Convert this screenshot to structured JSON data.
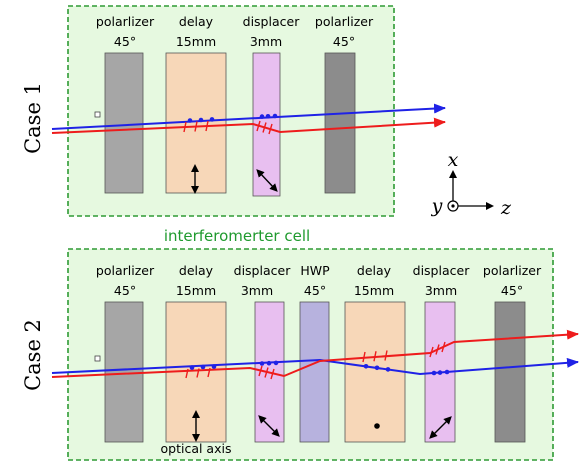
{
  "case1": {
    "title": "Case 1",
    "labels": {
      "pol_in": "polarlizer",
      "pol_in_angle": "45°",
      "delay": "delay",
      "delay_len": "15mm",
      "disp": "displacer",
      "disp_len": "3mm",
      "pol_out": "polarlizer",
      "pol_out_angle": "45°"
    }
  },
  "cell_label": "interferomerter cell",
  "axes": {
    "x": "x",
    "y": "y",
    "z": "z"
  },
  "case2": {
    "title": "Case 2",
    "labels": {
      "pol_in": "polarlizer",
      "pol_in_angle": "45°",
      "delay1": "delay",
      "delay1_len": "15mm",
      "disp1": "displacer",
      "disp1_len": "3mm",
      "hwp": "HWP",
      "hwp_angle": "45°",
      "delay2": "delay",
      "delay2_len": "15mm",
      "disp2": "displacer",
      "disp2_len": "3mm",
      "pol_out": "polarlizer",
      "pol_out_angle": "45°"
    },
    "optical_axis": "optical axis"
  },
  "colors": {
    "cell_fill": "#e6f9e0",
    "cell_border": "#2e9a34",
    "polarizer_in": "#a6a6a6",
    "polarizer_out": "#8c8c8c",
    "delay": "#f7d7b8",
    "displacer": "#e8bff0",
    "hwp": "#b7b2de",
    "beam_blue": "#1f22e6",
    "beam_red": "#ee1c1c"
  }
}
